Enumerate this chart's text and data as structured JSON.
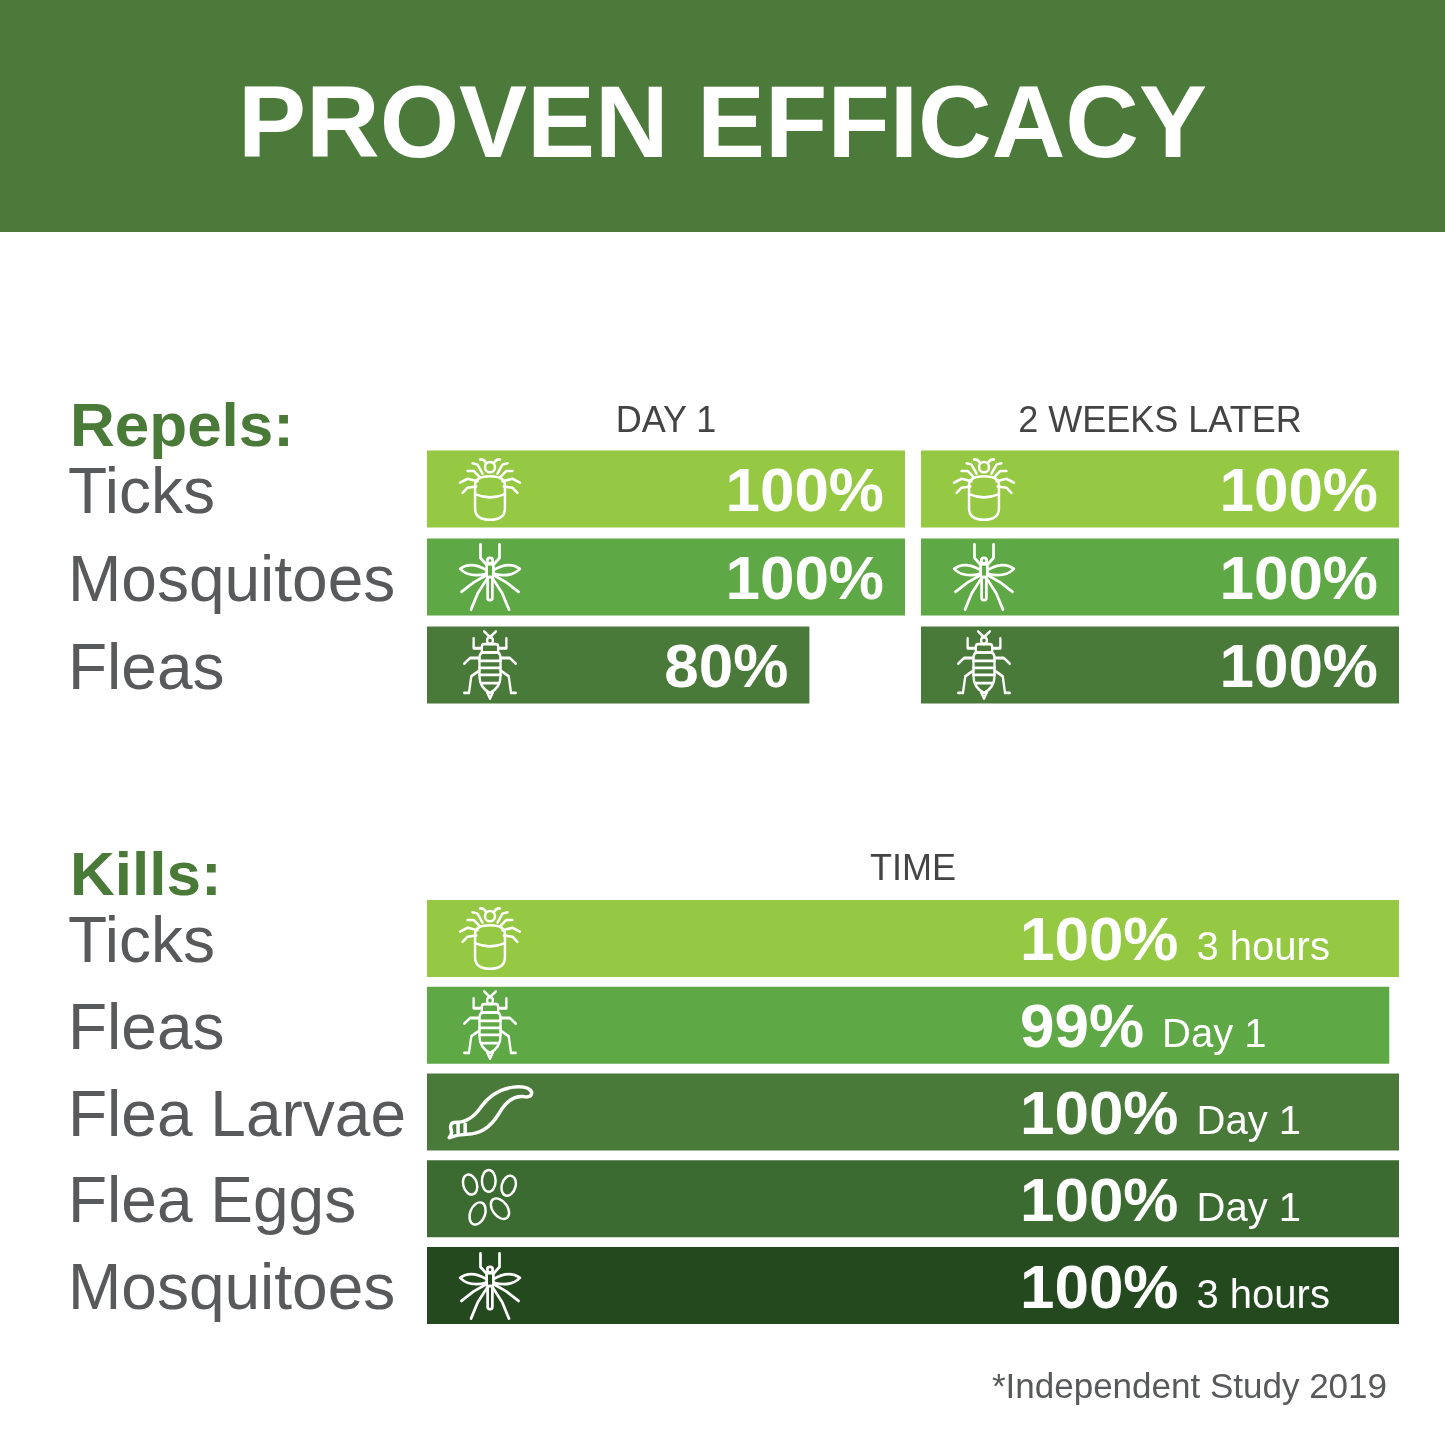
{
  "chart_data": [
    {
      "type": "bar",
      "orientation": "horizontal",
      "title": "PROVEN EFFICACY",
      "ylabel": "Repels:",
      "subtitle": "DAY 1",
      "categories": [
        "Ticks",
        "Mosquitoes",
        "Fleas"
      ],
      "values": [
        100,
        100,
        80
      ],
      "colors": [
        "#95c843",
        "#5ea845",
        "#4a7a3a"
      ],
      "value_labels": [
        "100%",
        "100%",
        "80%"
      ],
      "xlim": [
        0,
        100
      ],
      "tick_labels": "y"
    },
    {
      "type": "bar",
      "orientation": "horizontal",
      "subtitle": "2 WEEKS LATER",
      "categories": [
        null,
        null,
        null
      ],
      "values": [
        100,
        100,
        100
      ],
      "colors": [
        "#95c843",
        "#5ea845",
        "#4a7a3a"
      ],
      "value_labels": [
        "100%",
        "100%",
        "100%"
      ],
      "tick_labels": false
    },
    {
      "type": "bar",
      "orientation": "horizontal",
      "ylabel": "Kills:",
      "subtitle": "TIME",
      "categories": [
        "Ticks",
        "Fleas",
        "Flea Larvae",
        "Flea Eggs",
        "Mosquitoes"
      ],
      "values": [
        100,
        99,
        100,
        100,
        100
      ],
      "colors": [
        "#95c843",
        "#5ea845",
        "#4a7a3a",
        "#3b6b30",
        "#24491e"
      ],
      "value_labels": [
        "100% 3 hours",
        "99% Day 1",
        "100% Day 1",
        "100% Day 1",
        "100% 3 hours"
      ],
      "xlim": [
        0,
        100
      ],
      "tick_labels": "y",
      "annotations": [
        "*Independent Study 2019"
      ]
    }
  ]
}
